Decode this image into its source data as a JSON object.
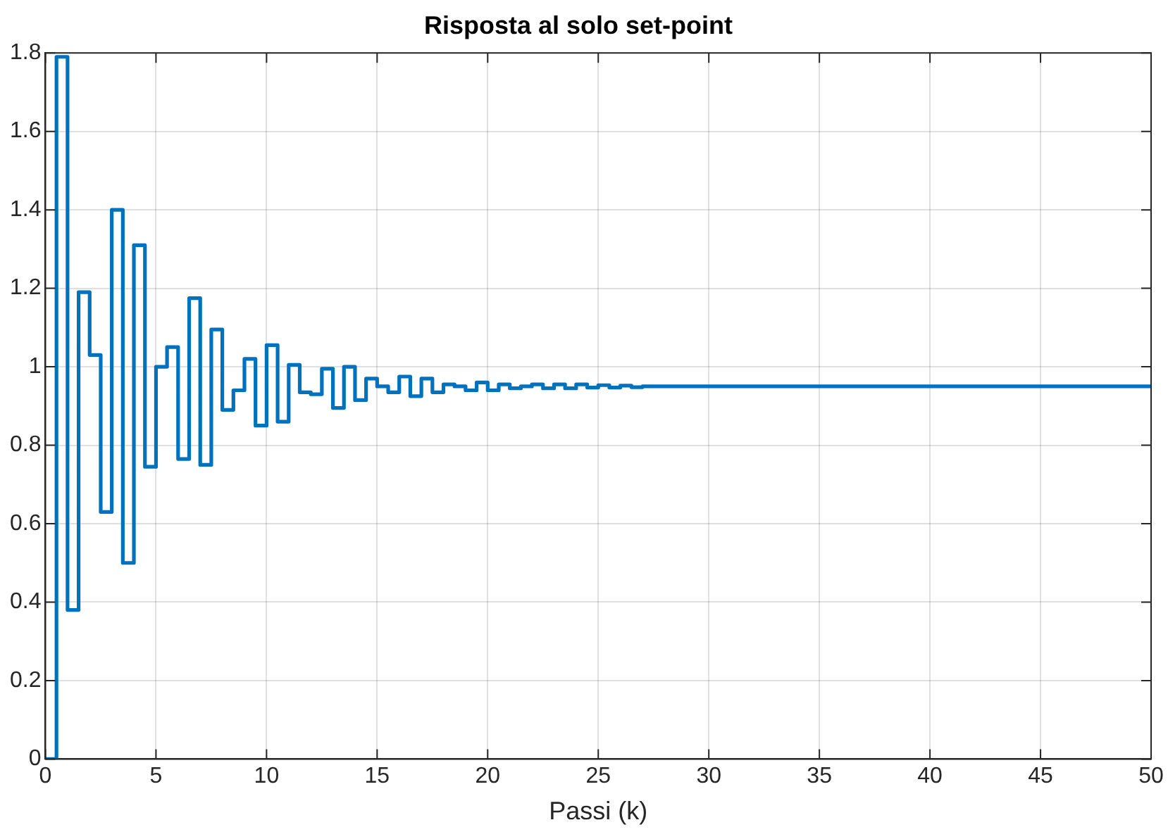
{
  "chart_data": {
    "type": "step",
    "title": "Risposta al solo set-point",
    "xlabel": "Passi (k)",
    "x": [
      0,
      0.5,
      1,
      1.5,
      2,
      2.5,
      3,
      3.5,
      4,
      4.5,
      5,
      5.5,
      6,
      6.5,
      7,
      7.5,
      8,
      8.5,
      9,
      9.5,
      10,
      10.5,
      11,
      11.5,
      12,
      12.5,
      13,
      13.5,
      14,
      14.5,
      15,
      15.5,
      16,
      16.5,
      17,
      17.5,
      18,
      18.5,
      19,
      19.5,
      20,
      20.5,
      21,
      21.5,
      22,
      22.5,
      23,
      23.5,
      24,
      24.5,
      25,
      25.5,
      26,
      26.5,
      27,
      50
    ],
    "series": [
      {
        "color": "#0072bd",
        "values": [
          0,
          1.79,
          0.38,
          1.19,
          1.03,
          0.63,
          1.4,
          0.5,
          1.31,
          0.745,
          1.0,
          1.05,
          0.765,
          1.175,
          0.75,
          1.095,
          0.89,
          0.94,
          1.02,
          0.85,
          1.055,
          0.86,
          1.005,
          0.935,
          0.93,
          0.995,
          0.895,
          1.0,
          0.915,
          0.97,
          0.95,
          0.935,
          0.975,
          0.925,
          0.97,
          0.935,
          0.955,
          0.95,
          0.94,
          0.96,
          0.94,
          0.955,
          0.945,
          0.95,
          0.955,
          0.945,
          0.955,
          0.945,
          0.955,
          0.947,
          0.953,
          0.947,
          0.952,
          0.948,
          0.95,
          0.95
        ]
      }
    ],
    "xlim": [
      0,
      50
    ],
    "xticks": [
      0,
      5,
      10,
      15,
      20,
      25,
      30,
      35,
      40,
      45,
      50
    ],
    "ylim": [
      0,
      1.8
    ],
    "yticks": [
      0,
      0.2,
      0.4,
      0.6,
      0.8,
      1,
      1.2,
      1.4,
      1.6,
      1.8
    ],
    "grid": true,
    "legend": false,
    "marker": "none",
    "line_style": "solid"
  }
}
